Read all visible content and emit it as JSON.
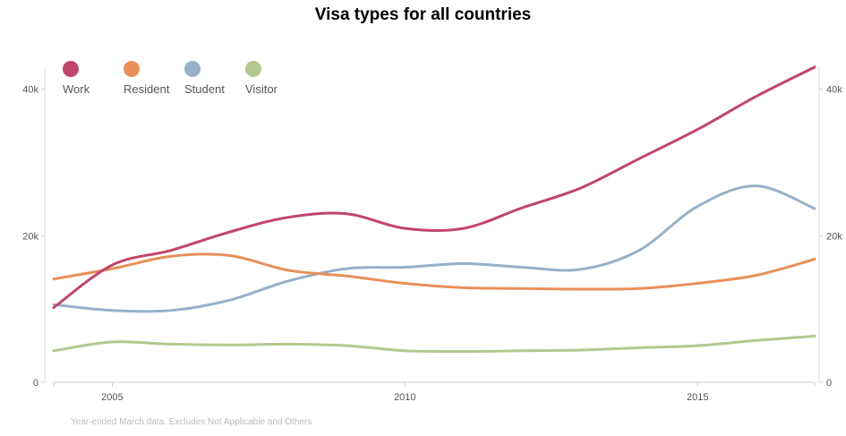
{
  "chart_data": {
    "type": "line",
    "title": "Visa types for all countries",
    "xlabel": "",
    "ylabel": "",
    "footnote": "Year-ended March data. Excludes Not Applicable and Others",
    "x": [
      2004,
      2005,
      2006,
      2007,
      2008,
      2009,
      2010,
      2011,
      2012,
      2013,
      2014,
      2015,
      2016,
      2017
    ],
    "xlim": [
      2004,
      2017
    ],
    "ylim": [
      0,
      43000
    ],
    "x_ticks": [
      {
        "value": 2005,
        "label": "2005"
      },
      {
        "value": 2010,
        "label": "2010"
      },
      {
        "value": 2015,
        "label": "2015"
      }
    ],
    "y_ticks": [
      {
        "value": 0,
        "label": "0"
      },
      {
        "value": 20000,
        "label": "20k"
      },
      {
        "value": 40000,
        "label": "40k"
      }
    ],
    "legend_position": "top-left",
    "grid": false,
    "series": [
      {
        "name": "Work",
        "color": "#c0456a",
        "values": [
          10200,
          16000,
          18000,
          20500,
          22500,
          23000,
          21000,
          21000,
          23800,
          26500,
          30500,
          34500,
          39000,
          43000
        ]
      },
      {
        "name": "Resident",
        "color": "#e8905a",
        "values": [
          14100,
          15500,
          17200,
          17300,
          15300,
          14500,
          13500,
          12900,
          12800,
          12700,
          12800,
          13500,
          14600,
          16800
        ]
      },
      {
        "name": "Student",
        "color": "#98b0c8",
        "values": [
          10600,
          9800,
          9800,
          11200,
          13800,
          15500,
          15700,
          16200,
          15700,
          15400,
          18000,
          24000,
          26800,
          23700
        ]
      },
      {
        "name": "Visitor",
        "color": "#b4c890",
        "values": [
          4300,
          5500,
          5200,
          5100,
          5200,
          5000,
          4300,
          4200,
          4300,
          4400,
          4700,
          5000,
          5700,
          6300
        ]
      }
    ]
  }
}
